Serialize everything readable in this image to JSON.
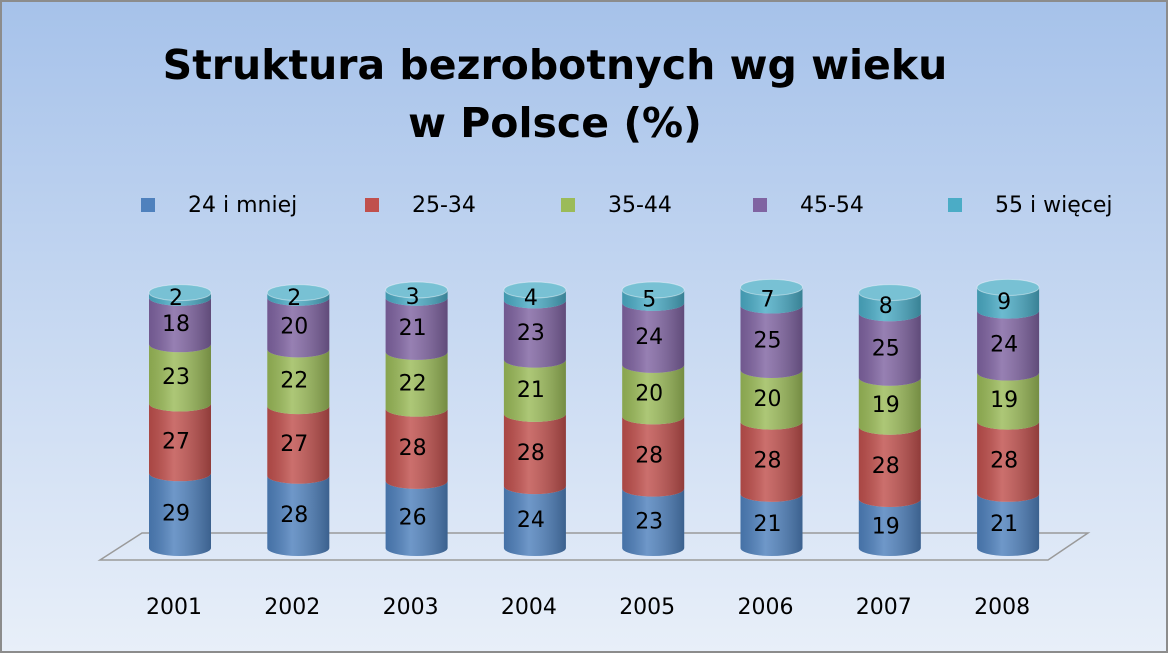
{
  "chart_data": {
    "type": "bar",
    "stacked": true,
    "title": "Struktura bezrobotnych wg wieku w Polsce (%)",
    "categories": [
      "2001",
      "2002",
      "2003",
      "2004",
      "2005",
      "2006",
      "2007",
      "2008"
    ],
    "series": [
      {
        "name": "24 i mniej",
        "color": "#4f81bd",
        "values": [
          29,
          28,
          26,
          24,
          23,
          21,
          19,
          21
        ]
      },
      {
        "name": "25-34",
        "color": "#c0504d",
        "values": [
          27,
          27,
          28,
          28,
          28,
          28,
          28,
          28
        ]
      },
      {
        "name": "35-44",
        "color": "#9bbb59",
        "values": [
          23,
          22,
          22,
          21,
          20,
          20,
          19,
          19
        ]
      },
      {
        "name": "45-54",
        "color": "#8064a2",
        "values": [
          18,
          20,
          21,
          23,
          24,
          25,
          25,
          24
        ]
      },
      {
        "name": "55 i więcej",
        "color": "#4bacc6",
        "values": [
          2,
          2,
          3,
          4,
          5,
          7,
          8,
          9
        ]
      }
    ],
    "legend": "top"
  }
}
